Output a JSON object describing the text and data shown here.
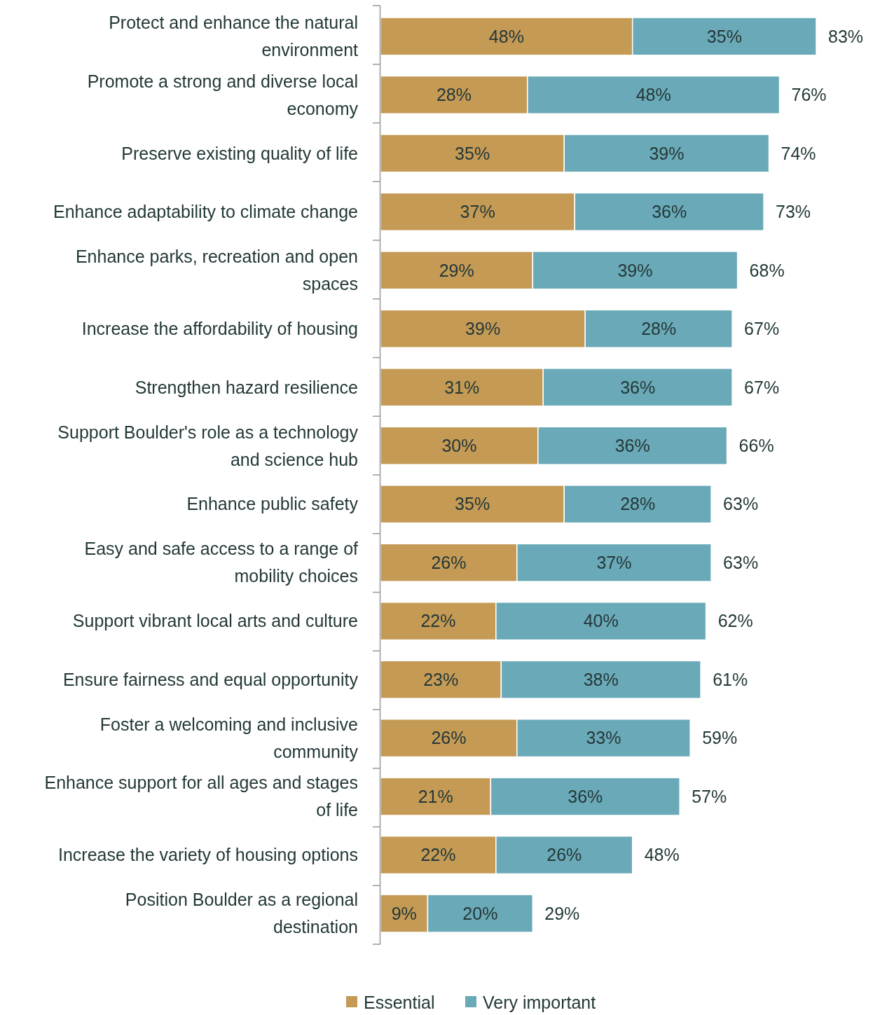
{
  "chart_data": {
    "type": "bar",
    "orientation": "horizontal",
    "stacked": true,
    "legend": "bottom",
    "categories": [
      "Protect and enhance the natural environment",
      "Promote a strong and diverse local economy",
      "Preserve existing quality of life",
      "Enhance adaptability to climate change",
      "Enhance parks, recreation and open spaces",
      "Increase the affordability of housing",
      "Strengthen hazard resilience",
      "Support Boulder's role as a technology and science hub",
      "Enhance public safety",
      "Easy and safe access to a range of mobility choices",
      "Support vibrant local arts and culture",
      "Ensure fairness and equal opportunity",
      "Foster a welcoming and inclusive community",
      "Enhance support for all ages and stages of life",
      "Increase the variety of housing options",
      "Position Boulder as a regional destination"
    ],
    "series": [
      {
        "name": "Essential",
        "color": "#c49a55",
        "values": [
          48,
          28,
          35,
          37,
          29,
          39,
          31,
          30,
          35,
          26,
          22,
          23,
          26,
          21,
          22,
          9
        ],
        "value_labels": [
          "48%",
          "28%",
          "35%",
          "37%",
          "29%",
          "39%",
          "31%",
          "30%",
          "35%",
          "26%",
          "22%",
          "23%",
          "26%",
          "21%",
          "22%",
          "9%"
        ]
      },
      {
        "name": "Very important",
        "color": "#6aa9b7",
        "values": [
          35,
          48,
          39,
          36,
          39,
          28,
          36,
          36,
          28,
          37,
          40,
          38,
          33,
          36,
          26,
          20
        ],
        "value_labels": [
          "35%",
          "48%",
          "39%",
          "36%",
          "39%",
          "28%",
          "36%",
          "36%",
          "28%",
          "37%",
          "40%",
          "38%",
          "33%",
          "36%",
          "26%",
          "20%"
        ]
      }
    ],
    "totals": [
      "83%",
      "76%",
      "74%",
      "73%",
      "68%",
      "67%",
      "67%",
      "66%",
      "63%",
      "63%",
      "62%",
      "61%",
      "59%",
      "57%",
      "48%",
      "29%"
    ]
  }
}
